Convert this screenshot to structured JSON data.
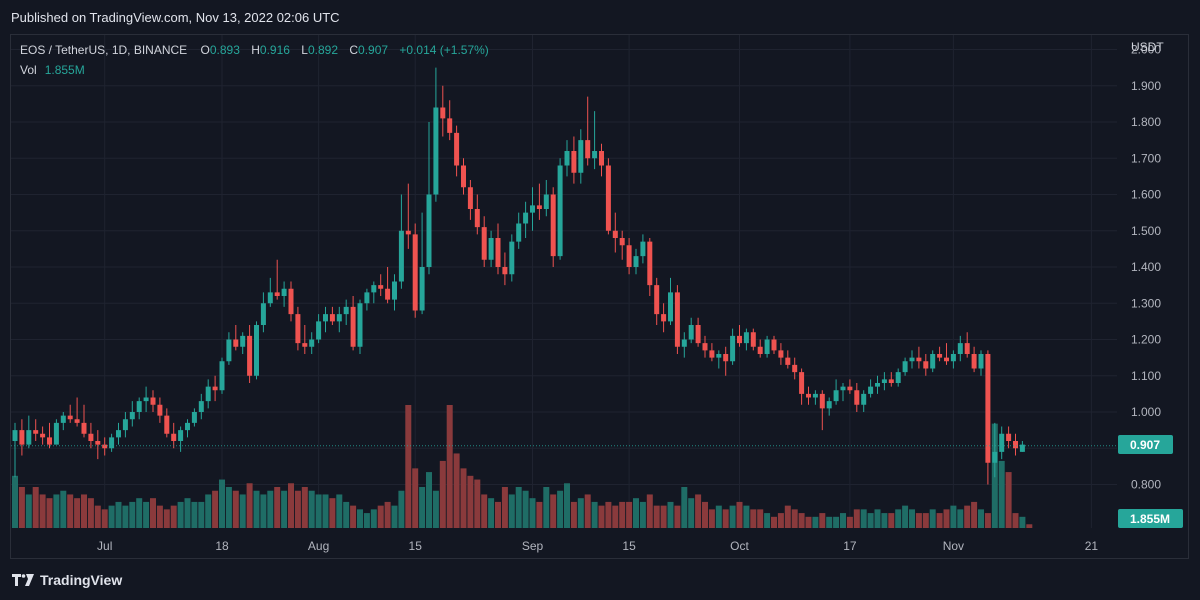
{
  "header": {
    "published": "Published on TradingView.com, Nov 13, 2022 02:06 UTC"
  },
  "legend": {
    "symbol": "EOS / TetherUS, 1D, BINANCE",
    "open_label": "O",
    "open": "0.893",
    "high_label": "H",
    "high": "0.916",
    "low_label": "L",
    "low": "0.892",
    "close_label": "C",
    "close": "0.907",
    "change": "+0.014 (+1.57%)",
    "vol_label": "Vol",
    "vol": "1.855M"
  },
  "footer": {
    "brand": "TradingView",
    "logo_icon": "tradingview-logo-icon"
  },
  "colors": {
    "up": "#26a69a",
    "down": "#ef5350",
    "up_vol": "#1f6d66",
    "down_vol": "#8a3a3c",
    "grid": "#1f2330",
    "text": "#b2b5be"
  },
  "chart_data": {
    "type": "candlestick",
    "y_axis": {
      "unit": "USDT",
      "ticks": [
        "0.800",
        "0.900",
        "1.000",
        "1.100",
        "1.200",
        "1.300",
        "1.400",
        "1.500",
        "1.600",
        "1.700",
        "1.800",
        "1.900",
        "2.000"
      ],
      "range": [
        0.68,
        2.04
      ]
    },
    "x_axis": {
      "ticks": [
        {
          "label": "Jul",
          "index": 13
        },
        {
          "label": "18",
          "index": 30
        },
        {
          "label": "Aug",
          "index": 44
        },
        {
          "label": "15",
          "index": 58
        },
        {
          "label": "Sep",
          "index": 75
        },
        {
          "label": "15",
          "index": 89
        },
        {
          "label": "Oct",
          "index": 105
        },
        {
          "label": "17",
          "index": 121
        },
        {
          "label": "Nov",
          "index": 136
        },
        {
          "label": "21",
          "index": 156
        }
      ]
    },
    "last_price": "0.907",
    "last_volume": "1.855M",
    "candles": [
      [
        0.92,
        0.97,
        0.82,
        0.95
      ],
      [
        0.95,
        0.98,
        0.88,
        0.91
      ],
      [
        0.91,
        0.99,
        0.9,
        0.95
      ],
      [
        0.95,
        0.98,
        0.92,
        0.94
      ],
      [
        0.94,
        0.96,
        0.91,
        0.93
      ],
      [
        0.93,
        0.97,
        0.9,
        0.91
      ],
      [
        0.91,
        0.98,
        0.91,
        0.97
      ],
      [
        0.97,
        1.0,
        0.95,
        0.99
      ],
      [
        0.99,
        1.02,
        0.97,
        0.98
      ],
      [
        0.98,
        1.04,
        0.96,
        0.97
      ],
      [
        0.97,
        1.02,
        0.93,
        0.94
      ],
      [
        0.94,
        0.97,
        0.9,
        0.92
      ],
      [
        0.92,
        0.95,
        0.87,
        0.91
      ],
      [
        0.91,
        0.93,
        0.88,
        0.9
      ],
      [
        0.9,
        0.94,
        0.89,
        0.93
      ],
      [
        0.93,
        0.97,
        0.91,
        0.95
      ],
      [
        0.95,
        1.0,
        0.93,
        0.98
      ],
      [
        0.98,
        1.03,
        0.96,
        1.0
      ],
      [
        1.0,
        1.04,
        0.98,
        1.03
      ],
      [
        1.03,
        1.07,
        1.0,
        1.04
      ],
      [
        1.04,
        1.06,
        1.0,
        1.02
      ],
      [
        1.02,
        1.04,
        0.97,
        0.99
      ],
      [
        0.99,
        1.01,
        0.93,
        0.94
      ],
      [
        0.94,
        0.97,
        0.9,
        0.92
      ],
      [
        0.92,
        0.96,
        0.89,
        0.95
      ],
      [
        0.95,
        0.98,
        0.93,
        0.97
      ],
      [
        0.97,
        1.01,
        0.96,
        1.0
      ],
      [
        1.0,
        1.05,
        0.98,
        1.03
      ],
      [
        1.03,
        1.09,
        1.01,
        1.07
      ],
      [
        1.07,
        1.1,
        1.03,
        1.06
      ],
      [
        1.06,
        1.15,
        1.05,
        1.14
      ],
      [
        1.14,
        1.22,
        1.13,
        1.2
      ],
      [
        1.2,
        1.24,
        1.17,
        1.18
      ],
      [
        1.18,
        1.22,
        1.16,
        1.21
      ],
      [
        1.21,
        1.24,
        1.08,
        1.1
      ],
      [
        1.1,
        1.25,
        1.09,
        1.24
      ],
      [
        1.24,
        1.33,
        1.22,
        1.3
      ],
      [
        1.3,
        1.37,
        1.29,
        1.33
      ],
      [
        1.33,
        1.42,
        1.31,
        1.32
      ],
      [
        1.32,
        1.36,
        1.29,
        1.34
      ],
      [
        1.34,
        1.36,
        1.25,
        1.27
      ],
      [
        1.27,
        1.29,
        1.17,
        1.19
      ],
      [
        1.19,
        1.24,
        1.16,
        1.18
      ],
      [
        1.18,
        1.22,
        1.16,
        1.2
      ],
      [
        1.2,
        1.27,
        1.19,
        1.25
      ],
      [
        1.25,
        1.29,
        1.22,
        1.27
      ],
      [
        1.27,
        1.29,
        1.24,
        1.25
      ],
      [
        1.25,
        1.29,
        1.22,
        1.27
      ],
      [
        1.27,
        1.31,
        1.24,
        1.29
      ],
      [
        1.29,
        1.32,
        1.17,
        1.18
      ],
      [
        1.18,
        1.31,
        1.16,
        1.3
      ],
      [
        1.3,
        1.34,
        1.28,
        1.33
      ],
      [
        1.33,
        1.36,
        1.3,
        1.35
      ],
      [
        1.35,
        1.38,
        1.32,
        1.34
      ],
      [
        1.34,
        1.4,
        1.3,
        1.31
      ],
      [
        1.31,
        1.38,
        1.28,
        1.36
      ],
      [
        1.36,
        1.6,
        1.34,
        1.5
      ],
      [
        1.5,
        1.63,
        1.45,
        1.49
      ],
      [
        1.49,
        1.52,
        1.26,
        1.28
      ],
      [
        1.28,
        1.55,
        1.27,
        1.4
      ],
      [
        1.4,
        1.8,
        1.38,
        1.6
      ],
      [
        1.6,
        1.95,
        1.58,
        1.84
      ],
      [
        1.84,
        1.9,
        1.76,
        1.81
      ],
      [
        1.81,
        1.86,
        1.75,
        1.77
      ],
      [
        1.77,
        1.79,
        1.65,
        1.68
      ],
      [
        1.68,
        1.7,
        1.6,
        1.62
      ],
      [
        1.62,
        1.64,
        1.53,
        1.56
      ],
      [
        1.56,
        1.6,
        1.49,
        1.51
      ],
      [
        1.51,
        1.54,
        1.4,
        1.42
      ],
      [
        1.42,
        1.5,
        1.4,
        1.48
      ],
      [
        1.48,
        1.52,
        1.38,
        1.4
      ],
      [
        1.4,
        1.44,
        1.35,
        1.38
      ],
      [
        1.38,
        1.49,
        1.36,
        1.47
      ],
      [
        1.47,
        1.55,
        1.45,
        1.52
      ],
      [
        1.52,
        1.58,
        1.48,
        1.55
      ],
      [
        1.55,
        1.62,
        1.5,
        1.57
      ],
      [
        1.57,
        1.63,
        1.53,
        1.56
      ],
      [
        1.56,
        1.64,
        1.54,
        1.6
      ],
      [
        1.6,
        1.62,
        1.4,
        1.43
      ],
      [
        1.43,
        1.7,
        1.42,
        1.68
      ],
      [
        1.68,
        1.75,
        1.65,
        1.72
      ],
      [
        1.72,
        1.76,
        1.63,
        1.66
      ],
      [
        1.66,
        1.78,
        1.63,
        1.75
      ],
      [
        1.75,
        1.87,
        1.68,
        1.7
      ],
      [
        1.7,
        1.83,
        1.67,
        1.72
      ],
      [
        1.72,
        1.74,
        1.65,
        1.68
      ],
      [
        1.68,
        1.7,
        1.49,
        1.5
      ],
      [
        1.5,
        1.55,
        1.44,
        1.48
      ],
      [
        1.48,
        1.5,
        1.42,
        1.46
      ],
      [
        1.46,
        1.48,
        1.38,
        1.4
      ],
      [
        1.4,
        1.45,
        1.38,
        1.43
      ],
      [
        1.43,
        1.49,
        1.41,
        1.47
      ],
      [
        1.47,
        1.48,
        1.32,
        1.35
      ],
      [
        1.35,
        1.37,
        1.24,
        1.27
      ],
      [
        1.27,
        1.3,
        1.22,
        1.25
      ],
      [
        1.25,
        1.37,
        1.24,
        1.33
      ],
      [
        1.33,
        1.35,
        1.16,
        1.18
      ],
      [
        1.18,
        1.22,
        1.15,
        1.2
      ],
      [
        1.2,
        1.26,
        1.19,
        1.24
      ],
      [
        1.24,
        1.26,
        1.18,
        1.19
      ],
      [
        1.19,
        1.21,
        1.15,
        1.17
      ],
      [
        1.17,
        1.19,
        1.14,
        1.15
      ],
      [
        1.15,
        1.17,
        1.12,
        1.16
      ],
      [
        1.16,
        1.18,
        1.1,
        1.14
      ],
      [
        1.14,
        1.23,
        1.13,
        1.21
      ],
      [
        1.21,
        1.24,
        1.18,
        1.19
      ],
      [
        1.19,
        1.23,
        1.17,
        1.22
      ],
      [
        1.22,
        1.23,
        1.17,
        1.18
      ],
      [
        1.18,
        1.2,
        1.15,
        1.16
      ],
      [
        1.16,
        1.21,
        1.15,
        1.2
      ],
      [
        1.2,
        1.21,
        1.16,
        1.17
      ],
      [
        1.17,
        1.19,
        1.13,
        1.15
      ],
      [
        1.15,
        1.17,
        1.12,
        1.13
      ],
      [
        1.13,
        1.15,
        1.09,
        1.11
      ],
      [
        1.11,
        1.12,
        1.02,
        1.05
      ],
      [
        1.05,
        1.07,
        1.02,
        1.04
      ],
      [
        1.04,
        1.06,
        1.02,
        1.05
      ],
      [
        1.05,
        1.06,
        0.95,
        1.01
      ],
      [
        1.01,
        1.04,
        0.99,
        1.03
      ],
      [
        1.03,
        1.09,
        1.02,
        1.06
      ],
      [
        1.06,
        1.08,
        1.03,
        1.07
      ],
      [
        1.07,
        1.09,
        1.05,
        1.06
      ],
      [
        1.06,
        1.08,
        1.0,
        1.02
      ],
      [
        1.02,
        1.06,
        1.0,
        1.05
      ],
      [
        1.05,
        1.09,
        1.04,
        1.07
      ],
      [
        1.07,
        1.1,
        1.05,
        1.08
      ],
      [
        1.08,
        1.11,
        1.06,
        1.09
      ],
      [
        1.09,
        1.11,
        1.07,
        1.08
      ],
      [
        1.08,
        1.12,
        1.07,
        1.11
      ],
      [
        1.11,
        1.15,
        1.1,
        1.14
      ],
      [
        1.14,
        1.17,
        1.12,
        1.15
      ],
      [
        1.15,
        1.18,
        1.12,
        1.14
      ],
      [
        1.14,
        1.16,
        1.1,
        1.12
      ],
      [
        1.12,
        1.17,
        1.11,
        1.16
      ],
      [
        1.16,
        1.18,
        1.14,
        1.15
      ],
      [
        1.15,
        1.19,
        1.13,
        1.14
      ],
      [
        1.14,
        1.17,
        1.12,
        1.16
      ],
      [
        1.16,
        1.21,
        1.14,
        1.19
      ],
      [
        1.19,
        1.22,
        1.15,
        1.16
      ],
      [
        1.16,
        1.18,
        1.11,
        1.12
      ],
      [
        1.12,
        1.17,
        1.1,
        1.16
      ],
      [
        1.16,
        1.17,
        0.8,
        0.86
      ],
      [
        0.86,
        0.97,
        0.82,
        0.89
      ],
      [
        0.89,
        0.96,
        0.87,
        0.94
      ],
      [
        0.94,
        0.96,
        0.9,
        0.92
      ],
      [
        0.92,
        0.94,
        0.88,
        0.9
      ],
      [
        0.89,
        0.92,
        0.89,
        0.91
      ]
    ],
    "volumes": [
      14,
      11,
      9,
      11,
      9,
      8,
      9,
      10,
      9,
      8,
      9,
      8,
      6,
      5,
      6,
      7,
      6,
      7,
      8,
      7,
      8,
      6,
      5,
      6,
      7,
      8,
      7,
      7,
      9,
      10,
      13,
      11,
      10,
      9,
      12,
      10,
      9,
      10,
      11,
      10,
      12,
      10,
      11,
      10,
      9,
      9,
      8,
      9,
      7,
      6,
      5,
      4,
      5,
      6,
      7,
      6,
      10,
      33,
      16,
      11,
      15,
      10,
      18,
      33,
      20,
      16,
      14,
      13,
      9,
      8,
      7,
      11,
      9,
      11,
      10,
      8,
      7,
      11,
      9,
      10,
      12,
      7,
      8,
      9,
      7,
      6,
      7,
      6,
      7,
      7,
      8,
      7,
      9,
      6,
      6,
      7,
      6,
      11,
      8,
      9,
      7,
      5,
      6,
      5,
      6,
      7,
      6,
      5,
      5,
      4,
      3,
      4,
      6,
      5,
      4,
      3,
      3,
      4,
      3,
      3,
      4,
      3,
      5,
      5,
      4,
      5,
      4,
      4,
      5,
      6,
      5,
      4,
      4,
      5,
      4,
      5,
      6,
      5,
      6,
      7,
      5,
      4,
      28,
      18,
      15,
      4,
      3,
      1
    ]
  }
}
